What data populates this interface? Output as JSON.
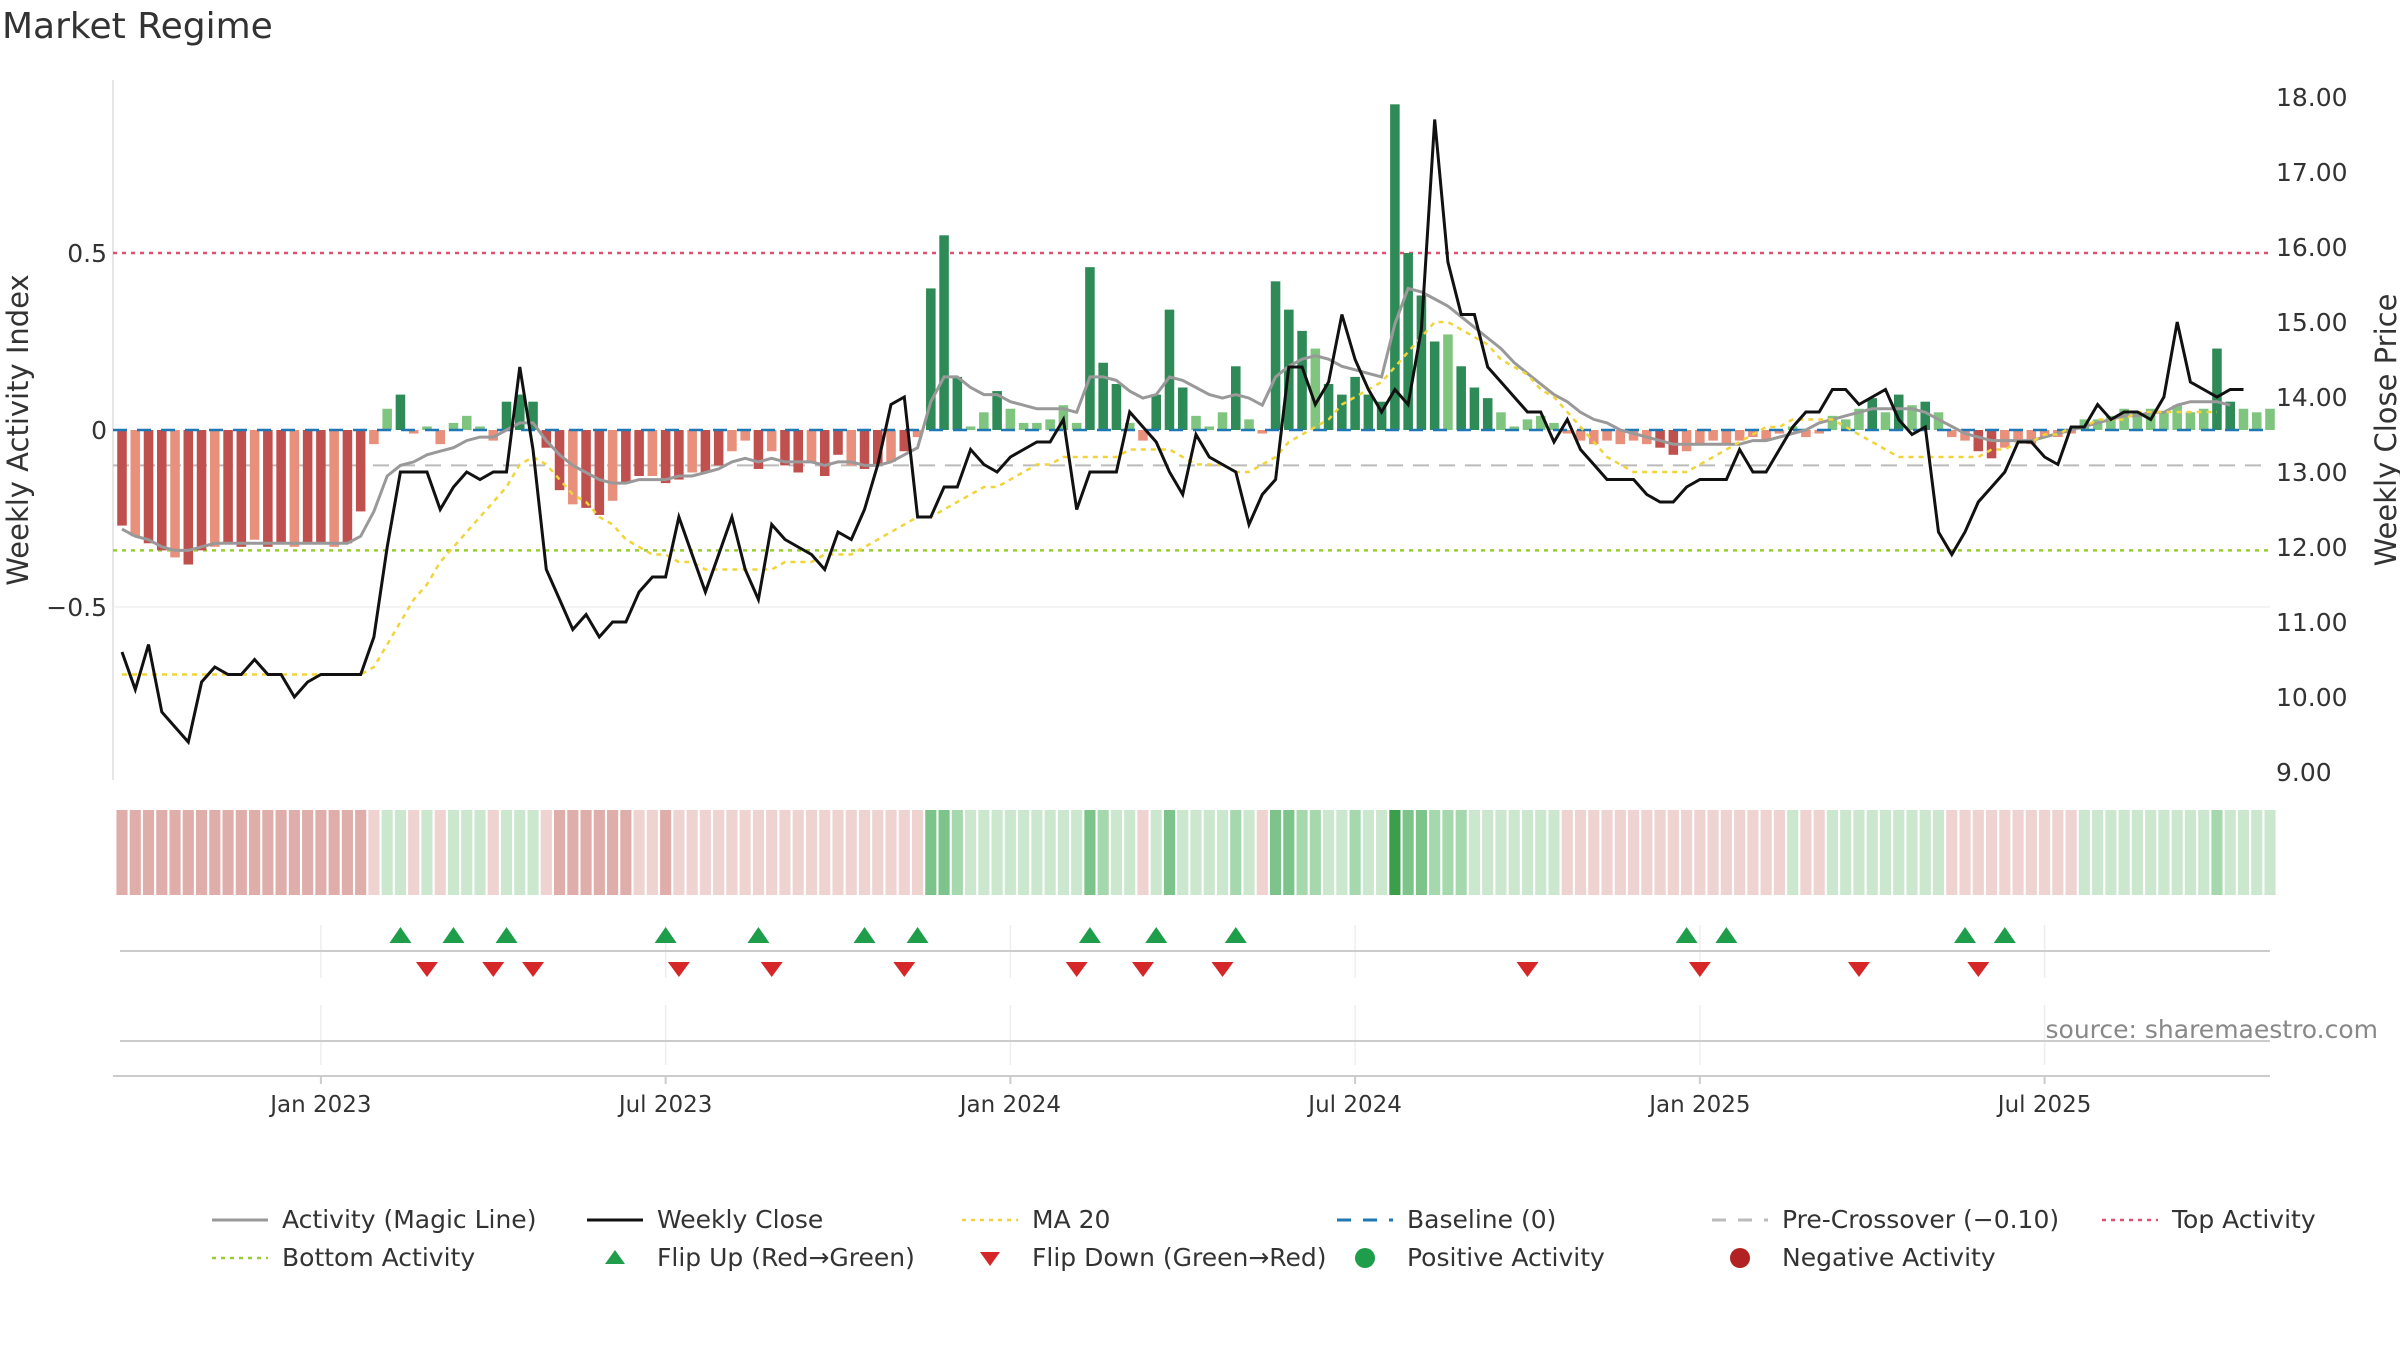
{
  "title": "Market Regime",
  "source": "source: sharemaestro.com",
  "chart_data": {
    "type": "bar",
    "title": "Market Regime",
    "ylabel_left": "Weekly Activity Index",
    "ylabel_right": "Weekly Close Price",
    "yticks_left": [
      "0.5",
      "0",
      "−0.5"
    ],
    "yticks_left_values": [
      0.5,
      0,
      -0.5
    ],
    "ylim_left": [
      -0.98,
      0.98
    ],
    "yticks_right": [
      "18.00",
      "17.00",
      "16.00",
      "15.00",
      "14.00",
      "13.00",
      "12.00",
      "11.00",
      "10.00",
      "9.00"
    ],
    "yticks_right_values": [
      18,
      17,
      16,
      15,
      14,
      13,
      12,
      11,
      10,
      9
    ],
    "ylim_right": [
      9.0,
      18.0
    ],
    "xticks": [
      "Jan 2023",
      "Jul 2023",
      "Jan 2024",
      "Jul 2024",
      "Jan 2025",
      "Jul 2025"
    ],
    "xticks_week_index": [
      15,
      41,
      67,
      93,
      119,
      145
    ],
    "reference_lines": {
      "top_activity": 0.5,
      "bottom_activity": -0.34,
      "pre_crossover": -0.1,
      "baseline": 0
    },
    "start_week": "2022-09-19",
    "activity": [
      -0.27,
      -0.3,
      -0.32,
      -0.34,
      -0.36,
      -0.38,
      -0.34,
      -0.33,
      -0.32,
      -0.33,
      -0.31,
      -0.33,
      -0.32,
      -0.33,
      -0.32,
      -0.32,
      -0.33,
      -0.32,
      -0.23,
      -0.04,
      0.06,
      0.1,
      -0.01,
      0.01,
      -0.04,
      0.02,
      0.04,
      0.01,
      -0.03,
      0.08,
      0.1,
      0.08,
      -0.05,
      -0.17,
      -0.21,
      -0.22,
      -0.24,
      -0.2,
      -0.15,
      -0.13,
      -0.13,
      -0.15,
      -0.14,
      -0.12,
      -0.12,
      -0.1,
      -0.06,
      -0.03,
      -0.11,
      -0.06,
      -0.1,
      -0.12,
      -0.09,
      -0.13,
      -0.07,
      -0.1,
      -0.11,
      -0.1,
      -0.09,
      -0.06,
      -0.02,
      0.4,
      0.55,
      0.15,
      0.01,
      0.05,
      0.11,
      0.06,
      0.02,
      0.02,
      0.03,
      0.07,
      0.02,
      0.46,
      0.19,
      0.13,
      0.02,
      -0.03,
      0.1,
      0.34,
      0.12,
      0.04,
      0.01,
      0.05,
      0.18,
      0.03,
      -0.01,
      0.42,
      0.34,
      0.28,
      0.23,
      0.13,
      0.1,
      0.15,
      0.1,
      0.08,
      0.92,
      0.5,
      0.38,
      0.25,
      0.27,
      0.18,
      0.12,
      0.09,
      0.05,
      0.01,
      0.03,
      0.04,
      0.02,
      -0.01,
      -0.03,
      -0.04,
      -0.03,
      -0.04,
      -0.03,
      -0.04,
      -0.05,
      -0.07,
      -0.06,
      -0.04,
      -0.03,
      -0.04,
      -0.03,
      -0.02,
      -0.03,
      -0.01,
      0.01,
      -0.02,
      -0.01,
      0.04,
      0.03,
      0.06,
      0.09,
      0.05,
      0.1,
      0.07,
      0.08,
      0.05,
      -0.02,
      -0.03,
      -0.06,
      -0.08,
      -0.05,
      -0.03,
      -0.04,
      -0.02,
      -0.02,
      -0.01,
      0.03,
      0.03,
      0.04,
      0.06,
      0.05,
      0.06,
      0.05,
      0.07,
      0.05,
      0.06,
      0.23,
      0.08,
      0.06,
      0.05,
      0.06
    ],
    "weekly_close": [
      10.6,
      10.1,
      10.7,
      9.8,
      9.6,
      9.4,
      10.2,
      10.4,
      10.3,
      10.3,
      10.5,
      10.3,
      10.3,
      10.0,
      10.2,
      10.3,
      10.3,
      10.3,
      10.3,
      10.8,
      12.0,
      13.0,
      13.0,
      13.0,
      12.5,
      12.8,
      13.0,
      12.9,
      13.0,
      13.0,
      14.4,
      13.3,
      11.7,
      11.3,
      10.9,
      11.1,
      10.8,
      11.0,
      11.0,
      11.4,
      11.6,
      11.6,
      12.4,
      11.9,
      11.4,
      11.9,
      12.4,
      11.7,
      11.3,
      12.3,
      12.1,
      12.0,
      11.9,
      11.7,
      12.2,
      12.1,
      12.5,
      13.1,
      13.9,
      14.0,
      12.4,
      12.4,
      12.8,
      12.8,
      13.3,
      13.1,
      13.0,
      13.2,
      13.3,
      13.4,
      13.4,
      13.7,
      12.5,
      13.0,
      13.0,
      13.0,
      13.8,
      13.6,
      13.4,
      13.0,
      12.7,
      13.5,
      13.2,
      13.1,
      13.0,
      12.3,
      12.7,
      12.9,
      14.4,
      14.4,
      13.9,
      14.2,
      15.1,
      14.5,
      14.1,
      13.8,
      14.1,
      13.9,
      14.9,
      17.7,
      15.8,
      15.1,
      15.1,
      14.4,
      14.2,
      14.0,
      13.8,
      13.8,
      13.4,
      13.7,
      13.3,
      13.1,
      12.9,
      12.9,
      12.9,
      12.7,
      12.6,
      12.6,
      12.8,
      12.9,
      12.9,
      12.9,
      13.3,
      13.0,
      13.0,
      13.3,
      13.6,
      13.8,
      13.8,
      14.1,
      14.1,
      13.9,
      14.0,
      14.1,
      13.7,
      13.5,
      13.6,
      12.2,
      11.9,
      12.2,
      12.6,
      12.8,
      13.0,
      13.4,
      13.4,
      13.2,
      13.1,
      13.6,
      13.6,
      13.9,
      13.7,
      13.8,
      13.8,
      13.7,
      14.0,
      15.0,
      14.2,
      14.1,
      14.0,
      14.1,
      14.1
    ],
    "ma20": [
      10.3,
      10.3,
      10.3,
      10.3,
      10.3,
      10.3,
      10.3,
      10.3,
      10.3,
      10.3,
      10.3,
      10.3,
      10.3,
      10.3,
      10.3,
      10.3,
      10.3,
      10.3,
      10.3,
      10.4,
      10.7,
      11.0,
      11.3,
      11.5,
      11.8,
      12.0,
      12.2,
      12.4,
      12.6,
      12.8,
      13.1,
      13.2,
      13.1,
      12.9,
      12.7,
      12.6,
      12.4,
      12.3,
      12.1,
      12.0,
      11.9,
      11.9,
      11.8,
      11.8,
      11.7,
      11.7,
      11.7,
      11.7,
      11.7,
      11.7,
      11.8,
      11.8,
      11.8,
      11.9,
      11.9,
      11.9,
      12.0,
      12.1,
      12.2,
      12.3,
      12.4,
      12.4,
      12.5,
      12.6,
      12.7,
      12.8,
      12.8,
      12.9,
      13.0,
      13.1,
      13.1,
      13.2,
      13.2,
      13.2,
      13.2,
      13.2,
      13.3,
      13.3,
      13.3,
      13.3,
      13.2,
      13.1,
      13.1,
      13.1,
      13.0,
      13.0,
      13.1,
      13.2,
      13.4,
      13.5,
      13.6,
      13.7,
      13.9,
      14.0,
      14.1,
      14.2,
      14.4,
      14.6,
      14.8,
      15.0,
      15.0,
      14.9,
      14.8,
      14.7,
      14.5,
      14.4,
      14.3,
      14.1,
      14.0,
      13.8,
      13.6,
      13.4,
      13.2,
      13.1,
      13.0,
      13.0,
      13.0,
      13.0,
      13.0,
      13.1,
      13.2,
      13.3,
      13.4,
      13.5,
      13.6,
      13.6,
      13.7,
      13.7,
      13.7,
      13.7,
      13.6,
      13.5,
      13.4,
      13.3,
      13.2,
      13.2,
      13.2,
      13.2,
      13.2,
      13.2,
      13.2,
      13.3,
      13.3,
      13.4,
      13.4,
      13.5,
      13.5,
      13.6,
      13.6,
      13.7,
      13.7,
      13.7,
      13.8,
      13.8,
      13.8,
      13.8,
      13.8,
      13.8,
      13.8
    ],
    "magic_line": [
      -0.28,
      -0.3,
      -0.31,
      -0.33,
      -0.34,
      -0.34,
      -0.33,
      -0.32,
      -0.32,
      -0.32,
      -0.32,
      -0.32,
      -0.32,
      -0.32,
      -0.32,
      -0.32,
      -0.32,
      -0.32,
      -0.3,
      -0.23,
      -0.13,
      -0.1,
      -0.09,
      -0.07,
      -0.06,
      -0.05,
      -0.03,
      -0.02,
      -0.02,
      0.0,
      0.02,
      0.02,
      -0.03,
      -0.07,
      -0.1,
      -0.12,
      -0.14,
      -0.15,
      -0.15,
      -0.14,
      -0.14,
      -0.14,
      -0.13,
      -0.13,
      -0.12,
      -0.11,
      -0.09,
      -0.08,
      -0.09,
      -0.08,
      -0.09,
      -0.09,
      -0.09,
      -0.1,
      -0.09,
      -0.09,
      -0.1,
      -0.1,
      -0.09,
      -0.07,
      -0.05,
      0.08,
      0.15,
      0.15,
      0.12,
      0.1,
      0.1,
      0.08,
      0.07,
      0.06,
      0.06,
      0.06,
      0.05,
      0.15,
      0.15,
      0.14,
      0.11,
      0.09,
      0.1,
      0.15,
      0.14,
      0.12,
      0.1,
      0.09,
      0.1,
      0.09,
      0.07,
      0.15,
      0.18,
      0.2,
      0.21,
      0.2,
      0.18,
      0.17,
      0.16,
      0.15,
      0.3,
      0.4,
      0.39,
      0.37,
      0.35,
      0.32,
      0.29,
      0.26,
      0.23,
      0.19,
      0.16,
      0.13,
      0.1,
      0.08,
      0.05,
      0.03,
      0.02,
      0.0,
      -0.01,
      -0.02,
      -0.03,
      -0.04,
      -0.04,
      -0.04,
      -0.04,
      -0.04,
      -0.04,
      -0.03,
      -0.03,
      -0.02,
      -0.01,
      0.0,
      0.02,
      0.03,
      0.04,
      0.05,
      0.06,
      0.06,
      0.06,
      0.06,
      0.05,
      0.03,
      0.01,
      -0.01,
      -0.02,
      -0.03,
      -0.03,
      -0.03,
      -0.03,
      -0.02,
      -0.01,
      0.0,
      0.01,
      0.02,
      0.03,
      0.04,
      0.04,
      0.05,
      0.05,
      0.07,
      0.08,
      0.08,
      0.08,
      0.07
    ],
    "flip_up_week_index": [
      21,
      25,
      29,
      41,
      48,
      56,
      60,
      73,
      78,
      84,
      118,
      121,
      139,
      142
    ],
    "flip_down_week_index": [
      23,
      28,
      31,
      42,
      49,
      59,
      72,
      77,
      83,
      106,
      119,
      131,
      140
    ],
    "colors": {
      "neg_strong": "#c0504d",
      "neg_light": "#e8907b",
      "pos_strong": "#2e8b57",
      "pos_light": "#7fc47f",
      "close": "#111111",
      "ma20": "#f0d43a",
      "magic": "#999999",
      "baseline": "#1f77b4",
      "pre_crossover": "#bbbbbb",
      "top": "#e05070",
      "bottom": "#9acd32",
      "flip_up": "#1e9e4a",
      "flip_down": "#d62728"
    },
    "legend": [
      {
        "label": "Activity (Magic Line)",
        "kind": "line",
        "color": "#999999"
      },
      {
        "label": "Weekly Close",
        "kind": "line",
        "color": "#111111"
      },
      {
        "label": "MA 20",
        "kind": "dotted",
        "color": "#f0d43a"
      },
      {
        "label": "Baseline (0)",
        "kind": "dashed",
        "color": "#1f77b4"
      },
      {
        "label": "Pre-Crossover (−0.10)",
        "kind": "dashed",
        "color": "#bbbbbb"
      },
      {
        "label": "Top Activity",
        "kind": "dotted",
        "color": "#e05070"
      },
      {
        "label": "Bottom Activity",
        "kind": "dotted",
        "color": "#9acd32"
      },
      {
        "label": "Flip Up (Red→Green)",
        "kind": "triangle-up",
        "color": "#1e9e4a"
      },
      {
        "label": "Flip Down (Green→Red)",
        "kind": "triangle-down",
        "color": "#d62728"
      },
      {
        "label": "Positive Activity",
        "kind": "dot",
        "color": "#1e9e4a"
      },
      {
        "label": "Negative Activity",
        "kind": "dot",
        "color": "#b22222"
      }
    ]
  }
}
